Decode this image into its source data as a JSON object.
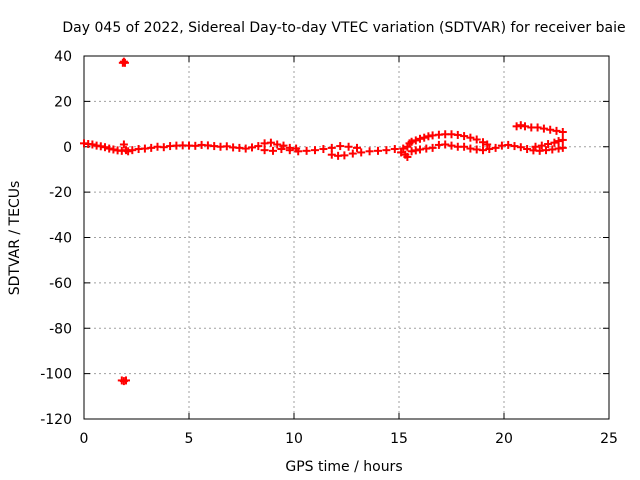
{
  "chart_data": {
    "type": "scatter",
    "title": "Day 045 of 2022, Sidereal Day-to-day VTEC variation (SDTVAR) for receiver baie",
    "xlabel": "GPS time / hours",
    "ylabel": "SDTVAR / TECUs",
    "xlim": [
      0,
      25
    ],
    "ylim": [
      -120,
      40
    ],
    "xticks": [
      0,
      5,
      10,
      15,
      20,
      25
    ],
    "yticks": [
      -120,
      -100,
      -80,
      -60,
      -40,
      -20,
      0,
      20,
      40
    ],
    "grid": true,
    "marker_color": "#ff0000",
    "series": [
      {
        "name": "SDTVAR",
        "points": [
          [
            0.0,
            1.5
          ],
          [
            0.2,
            1.2
          ],
          [
            0.4,
            1.0
          ],
          [
            0.6,
            0.5
          ],
          [
            0.8,
            0.2
          ],
          [
            1.0,
            -0.2
          ],
          [
            1.2,
            -0.8
          ],
          [
            1.4,
            -1.2
          ],
          [
            1.6,
            -1.6
          ],
          [
            1.8,
            -1.8
          ],
          [
            1.9,
            1.0
          ],
          [
            2.0,
            -1.5
          ],
          [
            2.1,
            -2.0
          ],
          [
            1.85,
            37.0
          ],
          [
            1.9,
            37.5
          ],
          [
            1.95,
            37.0
          ],
          [
            1.8,
            -103.0
          ],
          [
            1.9,
            -103.3
          ],
          [
            2.0,
            -103.0
          ],
          [
            2.3,
            -1.5
          ],
          [
            2.6,
            -1.0
          ],
          [
            2.9,
            -0.8
          ],
          [
            3.2,
            -0.5
          ],
          [
            3.5,
            0.0
          ],
          [
            3.8,
            -0.2
          ],
          [
            4.1,
            0.3
          ],
          [
            4.4,
            0.5
          ],
          [
            4.7,
            0.6
          ],
          [
            5.0,
            0.5
          ],
          [
            5.3,
            0.4
          ],
          [
            5.6,
            0.8
          ],
          [
            5.9,
            0.6
          ],
          [
            6.2,
            0.3
          ],
          [
            6.5,
            0.0
          ],
          [
            6.8,
            0.2
          ],
          [
            7.1,
            -0.3
          ],
          [
            7.4,
            -0.5
          ],
          [
            7.7,
            -0.8
          ],
          [
            8.0,
            -0.3
          ],
          [
            8.3,
            0.3
          ],
          [
            8.6,
            1.5
          ],
          [
            8.9,
            1.8
          ],
          [
            9.2,
            1.0
          ],
          [
            9.5,
            0.5
          ],
          [
            9.8,
            -0.5
          ],
          [
            10.1,
            -0.8
          ],
          [
            8.6,
            -1.5
          ],
          [
            9.0,
            -1.8
          ],
          [
            9.4,
            -1.0
          ],
          [
            9.8,
            -1.5
          ],
          [
            10.2,
            -2.0
          ],
          [
            10.6,
            -1.8
          ],
          [
            11.0,
            -1.5
          ],
          [
            11.4,
            -1.0
          ],
          [
            11.8,
            -0.5
          ],
          [
            12.2,
            0.3
          ],
          [
            12.6,
            0.0
          ],
          [
            13.0,
            -0.5
          ],
          [
            11.8,
            -3.5
          ],
          [
            12.1,
            -4.0
          ],
          [
            12.4,
            -3.8
          ],
          [
            12.8,
            -3.0
          ],
          [
            13.2,
            -2.5
          ],
          [
            13.6,
            -2.0
          ],
          [
            14.0,
            -1.8
          ],
          [
            14.4,
            -1.5
          ],
          [
            14.8,
            -1.0
          ],
          [
            15.1,
            -2.5
          ],
          [
            15.3,
            -3.5
          ],
          [
            15.4,
            -4.5
          ],
          [
            15.2,
            -0.8
          ],
          [
            15.4,
            0.0
          ],
          [
            15.5,
            1.5
          ],
          [
            15.6,
            2.2
          ],
          [
            15.8,
            2.8
          ],
          [
            16.0,
            3.5
          ],
          [
            16.2,
            4.0
          ],
          [
            16.4,
            4.6
          ],
          [
            16.6,
            5.0
          ],
          [
            16.9,
            5.3
          ],
          [
            17.2,
            5.5
          ],
          [
            17.5,
            5.5
          ],
          [
            17.8,
            5.2
          ],
          [
            18.1,
            4.7
          ],
          [
            18.4,
            4.0
          ],
          [
            18.7,
            3.2
          ],
          [
            19.0,
            2.0
          ],
          [
            19.2,
            1.0
          ],
          [
            15.6,
            -2.0
          ],
          [
            15.8,
            -1.6
          ],
          [
            16.0,
            -1.2
          ],
          [
            16.3,
            -0.8
          ],
          [
            16.6,
            -0.5
          ],
          [
            16.9,
            0.8
          ],
          [
            17.2,
            1.0
          ],
          [
            17.5,
            0.5
          ],
          [
            17.8,
            0.0
          ],
          [
            18.1,
            0.0
          ],
          [
            18.4,
            -0.8
          ],
          [
            18.7,
            -1.2
          ],
          [
            19.0,
            -1.5
          ],
          [
            19.3,
            -1.0
          ],
          [
            19.6,
            -0.5
          ],
          [
            19.9,
            0.5
          ],
          [
            20.2,
            0.8
          ],
          [
            20.5,
            0.3
          ],
          [
            20.8,
            -0.2
          ],
          [
            21.1,
            -1.0
          ],
          [
            21.4,
            -1.6
          ],
          [
            21.7,
            -1.8
          ],
          [
            22.0,
            -1.5
          ],
          [
            22.3,
            -1.2
          ],
          [
            22.6,
            -0.8
          ],
          [
            22.8,
            -0.5
          ],
          [
            20.6,
            9.0
          ],
          [
            20.8,
            9.5
          ],
          [
            21.0,
            9.0
          ],
          [
            21.3,
            8.5
          ],
          [
            21.6,
            8.5
          ],
          [
            21.9,
            8.0
          ],
          [
            22.2,
            7.5
          ],
          [
            22.5,
            7.0
          ],
          [
            22.8,
            6.5
          ],
          [
            21.5,
            0.0
          ],
          [
            21.8,
            0.5
          ],
          [
            22.1,
            1.2
          ],
          [
            22.4,
            1.8
          ],
          [
            22.6,
            2.5
          ],
          [
            22.8,
            3.0
          ]
        ]
      }
    ]
  }
}
